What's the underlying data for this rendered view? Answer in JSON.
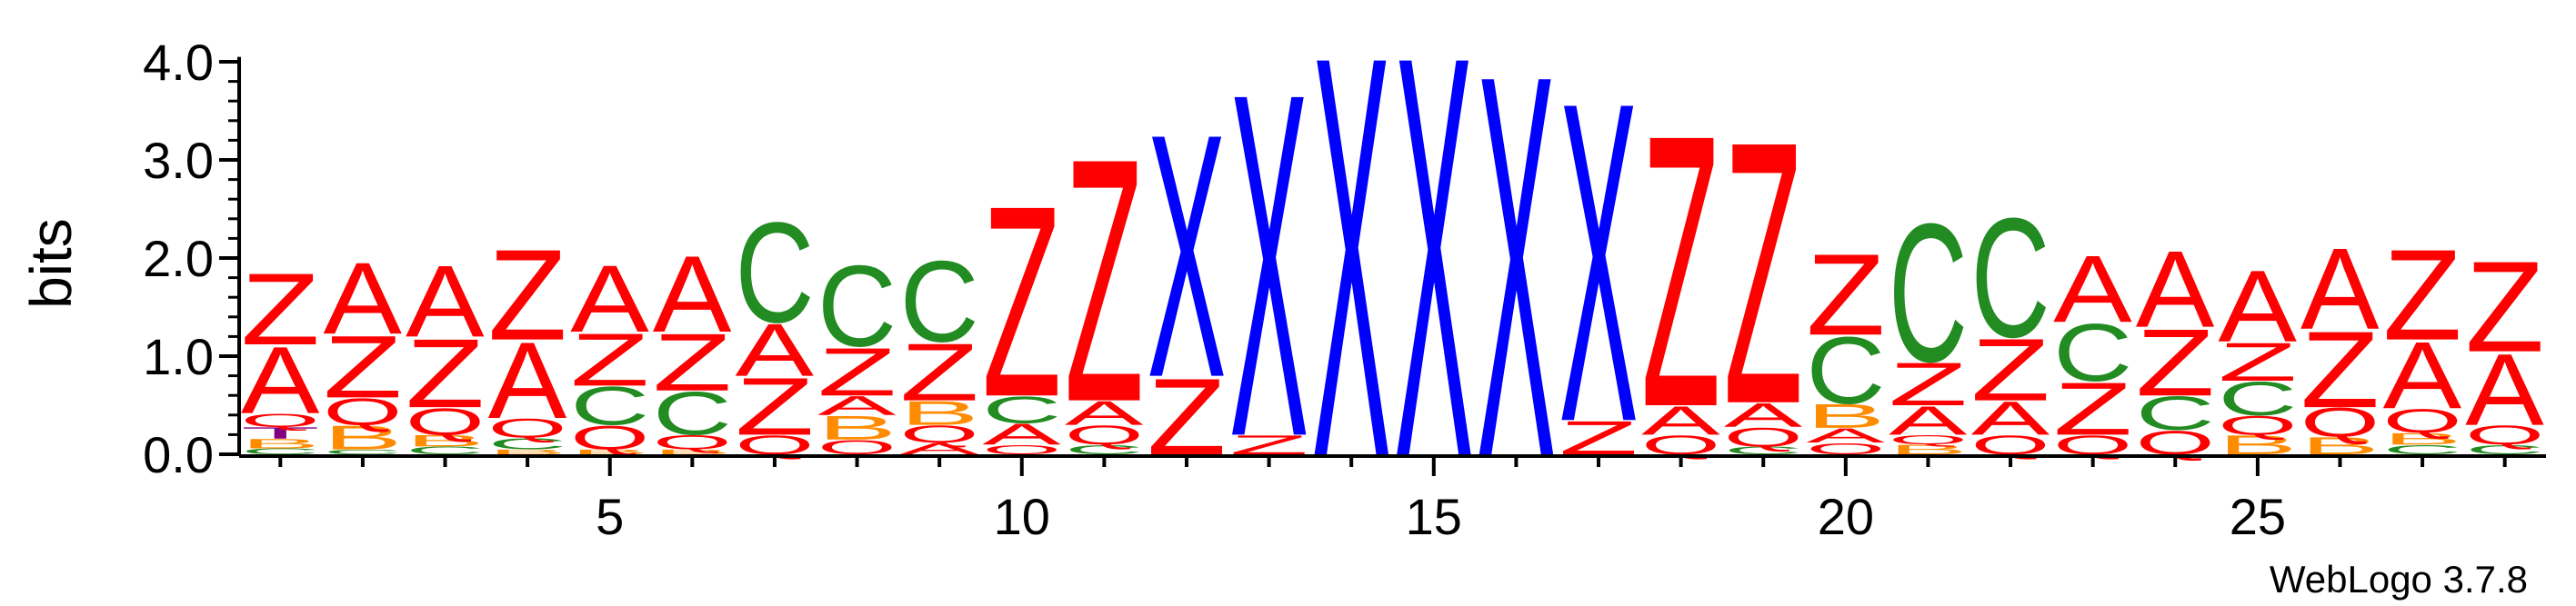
{
  "chart_data": {
    "type": "sequence-logo",
    "ylabel": "bits",
    "ylim": [
      0,
      4
    ],
    "yticks": [
      "0.0",
      "1.0",
      "2.0",
      "3.0",
      "4.0"
    ],
    "xlim": [
      0.5,
      28.5
    ],
    "xticks": [
      "5",
      "10",
      "15",
      "20",
      "25"
    ],
    "credit": "WebLogo 3.7.8",
    "colors": {
      "Z": "#ff0000",
      "A": "#ff0000",
      "Q": "#ff0000",
      "X": "#0000ff",
      "C": "#228b22",
      "B": "#ff8c00",
      "T": "#800080"
    },
    "positions": [
      {
        "pos": 1,
        "stack": [
          [
            "C",
            0.06
          ],
          [
            "B",
            0.1
          ],
          [
            "T",
            0.12
          ],
          [
            "Q",
            0.14
          ],
          [
            "A",
            0.7
          ],
          [
            "Z",
            0.75
          ]
        ]
      },
      {
        "pos": 2,
        "stack": [
          [
            "C",
            0.05
          ],
          [
            "B",
            0.25
          ],
          [
            "Q",
            0.28
          ],
          [
            "Z",
            0.65
          ],
          [
            "A",
            0.75
          ]
        ]
      },
      {
        "pos": 3,
        "stack": [
          [
            "C",
            0.08
          ],
          [
            "B",
            0.12
          ],
          [
            "Q",
            0.28
          ],
          [
            "Z",
            0.72
          ],
          [
            "A",
            0.75
          ]
        ]
      },
      {
        "pos": 4,
        "stack": [
          [
            "B",
            0.05
          ],
          [
            "C",
            0.12
          ],
          [
            "Q",
            0.2
          ],
          [
            "A",
            0.8
          ],
          [
            "Z",
            0.95
          ]
        ]
      },
      {
        "pos": 5,
        "stack": [
          [
            "B",
            0.05
          ],
          [
            "Q",
            0.25
          ],
          [
            "C",
            0.4
          ],
          [
            "Z",
            0.55
          ],
          [
            "A",
            0.7
          ]
        ]
      },
      {
        "pos": 6,
        "stack": [
          [
            "B",
            0.05
          ],
          [
            "Q",
            0.15
          ],
          [
            "C",
            0.45
          ],
          [
            "Z",
            0.6
          ],
          [
            "A",
            0.8
          ]
        ]
      },
      {
        "pos": 7,
        "stack": [
          [
            "Q",
            0.2
          ],
          [
            "Z",
            0.6
          ],
          [
            "A",
            0.55
          ],
          [
            "C",
            1.05
          ]
        ]
      },
      {
        "pos": 8,
        "stack": [
          [
            "Q",
            0.15
          ],
          [
            "B",
            0.25
          ],
          [
            "A",
            0.2
          ],
          [
            "Z",
            0.5
          ],
          [
            "C",
            0.85
          ]
        ]
      },
      {
        "pos": 9,
        "stack": [
          [
            "A",
            0.12
          ],
          [
            "Q",
            0.18
          ],
          [
            "B",
            0.25
          ],
          [
            "Z",
            0.6
          ],
          [
            "C",
            0.85
          ]
        ]
      },
      {
        "pos": 10,
        "stack": [
          [
            "Q",
            0.1
          ],
          [
            "A",
            0.22
          ],
          [
            "C",
            0.28
          ],
          [
            "Z",
            2.0
          ]
        ]
      },
      {
        "pos": 11,
        "stack": [
          [
            "C",
            0.1
          ],
          [
            "Q",
            0.2
          ],
          [
            "A",
            0.25
          ],
          [
            "Z",
            2.55
          ]
        ]
      },
      {
        "pos": 12,
        "stack": [
          [
            "Z",
            0.8
          ],
          [
            "X",
            2.55
          ]
        ]
      },
      {
        "pos": 13,
        "stack": [
          [
            "Z",
            0.2
          ],
          [
            "X",
            3.6
          ]
        ]
      },
      {
        "pos": 14,
        "stack": [
          [
            "X",
            4.2
          ]
        ]
      },
      {
        "pos": 15,
        "stack": [
          [
            "X",
            4.2
          ]
        ]
      },
      {
        "pos": 16,
        "stack": [
          [
            "X",
            4.0
          ]
        ]
      },
      {
        "pos": 17,
        "stack": [
          [
            "Z",
            0.35
          ],
          [
            "X",
            3.35
          ]
        ]
      },
      {
        "pos": 18,
        "stack": [
          [
            "Q",
            0.2
          ],
          [
            "A",
            0.3
          ],
          [
            "Z",
            2.85
          ]
        ]
      },
      {
        "pos": 19,
        "stack": [
          [
            "C",
            0.08
          ],
          [
            "Q",
            0.2
          ],
          [
            "A",
            0.25
          ],
          [
            "Z",
            2.75
          ]
        ]
      },
      {
        "pos": 20,
        "stack": [
          [
            "Q",
            0.12
          ],
          [
            "A",
            0.15
          ],
          [
            "B",
            0.25
          ],
          [
            "C",
            0.7
          ],
          [
            "Z",
            0.85
          ]
        ]
      },
      {
        "pos": 21,
        "stack": [
          [
            "B",
            0.1
          ],
          [
            "Q",
            0.1
          ],
          [
            "A",
            0.3
          ],
          [
            "Z",
            0.45
          ],
          [
            "C",
            1.45
          ]
        ]
      },
      {
        "pos": 22,
        "stack": [
          [
            "Q",
            0.2
          ],
          [
            "A",
            0.35
          ],
          [
            "Z",
            0.65
          ],
          [
            "C",
            1.25
          ]
        ]
      },
      {
        "pos": 23,
        "stack": [
          [
            "Q",
            0.2
          ],
          [
            "Z",
            0.55
          ],
          [
            "C",
            0.6
          ],
          [
            "A",
            0.7
          ]
        ]
      },
      {
        "pos": 24,
        "stack": [
          [
            "Q",
            0.25
          ],
          [
            "C",
            0.35
          ],
          [
            "Z",
            0.7
          ],
          [
            "A",
            0.8
          ]
        ]
      },
      {
        "pos": 25,
        "stack": [
          [
            "B",
            0.2
          ],
          [
            "Q",
            0.2
          ],
          [
            "C",
            0.35
          ],
          [
            "Z",
            0.4
          ],
          [
            "A",
            0.75
          ]
        ]
      },
      {
        "pos": 26,
        "stack": [
          [
            "B",
            0.18
          ],
          [
            "Q",
            0.3
          ],
          [
            "Z",
            0.8
          ],
          [
            "A",
            0.85
          ]
        ]
      },
      {
        "pos": 27,
        "stack": [
          [
            "C",
            0.1
          ],
          [
            "B",
            0.12
          ],
          [
            "Q",
            0.25
          ],
          [
            "A",
            0.7
          ],
          [
            "Z",
            0.95
          ]
        ]
      },
      {
        "pos": 28,
        "stack": [
          [
            "C",
            0.1
          ],
          [
            "Q",
            0.2
          ],
          [
            "A",
            0.75
          ],
          [
            "Z",
            0.95
          ]
        ]
      }
    ]
  }
}
